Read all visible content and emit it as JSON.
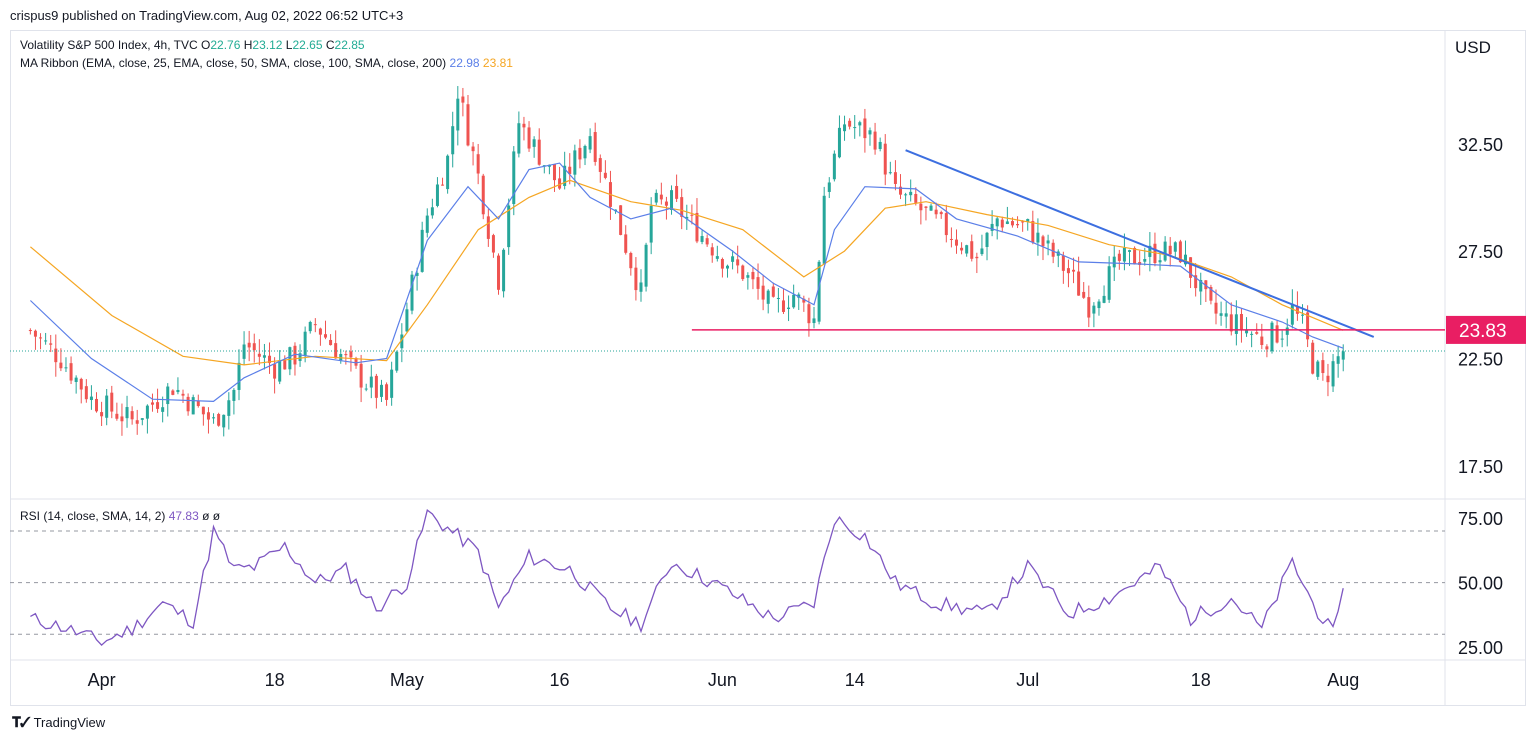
{
  "header": {
    "publisher": "crispus9 published on TradingView.com, Aug 02, 2022 06:52 UTC+3"
  },
  "legend": {
    "symbol": "Volatility S&P 500 Index, 4h, TVC",
    "open_label": "O",
    "open": "22.76",
    "high_label": "H",
    "high": "23.12",
    "low_label": "L",
    "low": "22.65",
    "close_label": "C",
    "close": "22.85",
    "ma_label": "MA Ribbon (EMA, close, 25, EMA, close, 50, SMA, close, 100, SMA, close, 200)",
    "ma_fast_value": "22.98",
    "ma_slow_value": "23.81",
    "rsi_label": "RSI (14, close, SMA, 14, 2)",
    "rsi_value": "47.83",
    "rsi_extra1": "ø",
    "rsi_extra2": "ø"
  },
  "price_axis": {
    "currency": "USD",
    "ticks": [
      "32.50",
      "27.50",
      "22.50",
      "17.50"
    ]
  },
  "rsi_axis": {
    "ticks": [
      "75.00",
      "50.00",
      "25.00"
    ]
  },
  "time_axis": {
    "labels": [
      "Apr",
      "18",
      "May",
      "16",
      "Jun",
      "14",
      "Jul",
      "18",
      "Aug"
    ]
  },
  "price_badge": {
    "value": "23.83"
  },
  "footer": {
    "brand": "TradingView"
  },
  "colors": {
    "up": "#26a69a",
    "down": "#ef5350",
    "ema_fast": "#5b7fe8",
    "ema_slow": "#f5a623",
    "trendline": "#3d6fe0",
    "support": "#e91e63",
    "rsi": "#7e57c2"
  },
  "chart_data": [
    {
      "type": "candlestick",
      "series_name": "Volatility S&P 500 Index, 4h, TVC",
      "y_unit": "USD",
      "ylim": [
        16.0,
        37.8
      ],
      "x_tick_labels": [
        "Apr",
        "18",
        "May",
        "16",
        "Jun",
        "14",
        "Jul",
        "18",
        "Aug"
      ],
      "close_path": [
        {
          "date": "2022-03-25",
          "value": 23.8
        },
        {
          "date": "2022-03-28",
          "value": 22.5
        },
        {
          "date": "2022-03-31",
          "value": 20.6
        },
        {
          "date": "2022-04-04",
          "value": 19.6
        },
        {
          "date": "2022-04-08",
          "value": 21.2
        },
        {
          "date": "2022-04-12",
          "value": 19.5
        },
        {
          "date": "2022-04-14",
          "value": 21.0
        },
        {
          "date": "2022-04-15",
          "value": 23.2
        },
        {
          "date": "2022-04-18",
          "value": 22.1
        },
        {
          "date": "2022-04-20",
          "value": 22.6
        },
        {
          "date": "2022-04-22",
          "value": 24.1
        },
        {
          "date": "2022-04-26",
          "value": 21.8
        },
        {
          "date": "2022-04-29",
          "value": 20.5
        },
        {
          "date": "2022-05-03",
          "value": 29.2
        },
        {
          "date": "2022-05-05",
          "value": 31.8
        },
        {
          "date": "2022-05-06",
          "value": 35.0
        },
        {
          "date": "2022-05-08",
          "value": 31.0
        },
        {
          "date": "2022-05-10",
          "value": 26.2
        },
        {
          "date": "2022-05-12",
          "value": 33.5
        },
        {
          "date": "2022-05-16",
          "value": 30.5
        },
        {
          "date": "2022-05-19",
          "value": 33.0
        },
        {
          "date": "2022-05-22",
          "value": 28.5
        },
        {
          "date": "2022-05-24",
          "value": 25.5
        },
        {
          "date": "2022-05-25",
          "value": 29.6
        },
        {
          "date": "2022-05-27",
          "value": 29.8
        },
        {
          "date": "2022-06-01",
          "value": 27.2
        },
        {
          "date": "2022-06-03",
          "value": 26.5
        },
        {
          "date": "2022-06-06",
          "value": 24.8
        },
        {
          "date": "2022-06-08",
          "value": 25.5
        },
        {
          "date": "2022-06-10",
          "value": 24.3
        },
        {
          "date": "2022-06-11",
          "value": 30.2
        },
        {
          "date": "2022-06-13",
          "value": 33.5
        },
        {
          "date": "2022-06-16",
          "value": 32.8
        },
        {
          "date": "2022-06-18",
          "value": 30.2
        },
        {
          "date": "2022-06-20",
          "value": 29.6
        },
        {
          "date": "2022-06-23",
          "value": 28.5
        },
        {
          "date": "2022-06-26",
          "value": 27.2
        },
        {
          "date": "2022-06-28",
          "value": 29.0
        },
        {
          "date": "2022-07-01",
          "value": 28.6
        },
        {
          "date": "2022-07-05",
          "value": 26.5
        },
        {
          "date": "2022-07-07",
          "value": 25.0
        },
        {
          "date": "2022-07-10",
          "value": 27.0
        },
        {
          "date": "2022-07-14",
          "value": 27.5
        },
        {
          "date": "2022-07-16",
          "value": 27.4
        },
        {
          "date": "2022-07-19",
          "value": 24.7
        },
        {
          "date": "2022-07-21",
          "value": 24.2
        },
        {
          "date": "2022-07-24",
          "value": 23.4
        },
        {
          "date": "2022-07-26",
          "value": 23.8
        },
        {
          "date": "2022-07-27",
          "value": 24.8
        },
        {
          "date": "2022-07-28",
          "value": 24.0
        },
        {
          "date": "2022-07-29",
          "value": 22.3
        },
        {
          "date": "2022-07-30",
          "value": 21.5
        },
        {
          "date": "2022-08-01",
          "value": 22.85
        }
      ],
      "ema_fast_path": [
        {
          "date": "2022-03-25",
          "value": 25.2
        },
        {
          "date": "2022-03-31",
          "value": 22.5
        },
        {
          "date": "2022-04-06",
          "value": 20.6
        },
        {
          "date": "2022-04-12",
          "value": 20.5
        },
        {
          "date": "2022-04-15",
          "value": 21.6
        },
        {
          "date": "2022-04-20",
          "value": 22.7
        },
        {
          "date": "2022-04-26",
          "value": 22.3
        },
        {
          "date": "2022-04-29",
          "value": 22.5
        },
        {
          "date": "2022-05-03",
          "value": 28.0
        },
        {
          "date": "2022-05-07",
          "value": 30.5
        },
        {
          "date": "2022-05-10",
          "value": 29.0
        },
        {
          "date": "2022-05-13",
          "value": 31.3
        },
        {
          "date": "2022-05-16",
          "value": 31.6
        },
        {
          "date": "2022-05-19",
          "value": 30.0
        },
        {
          "date": "2022-05-23",
          "value": 29.0
        },
        {
          "date": "2022-05-27",
          "value": 29.5
        },
        {
          "date": "2022-06-02",
          "value": 27.5
        },
        {
          "date": "2022-06-06",
          "value": 26.0
        },
        {
          "date": "2022-06-10",
          "value": 25.0
        },
        {
          "date": "2022-06-12",
          "value": 28.5
        },
        {
          "date": "2022-06-15",
          "value": 30.5
        },
        {
          "date": "2022-06-20",
          "value": 30.4
        },
        {
          "date": "2022-06-24",
          "value": 29.0
        },
        {
          "date": "2022-06-30",
          "value": 28.2
        },
        {
          "date": "2022-07-06",
          "value": 27.0
        },
        {
          "date": "2022-07-12",
          "value": 26.9
        },
        {
          "date": "2022-07-16",
          "value": 26.8
        },
        {
          "date": "2022-07-21",
          "value": 25.0
        },
        {
          "date": "2022-07-26",
          "value": 24.2
        },
        {
          "date": "2022-07-29",
          "value": 23.5
        },
        {
          "date": "2022-08-01",
          "value": 22.98
        }
      ],
      "ema_slow_path": [
        {
          "date": "2022-03-25",
          "value": 27.7
        },
        {
          "date": "2022-04-02",
          "value": 24.5
        },
        {
          "date": "2022-04-09",
          "value": 22.6
        },
        {
          "date": "2022-04-15",
          "value": 22.2
        },
        {
          "date": "2022-04-22",
          "value": 22.6
        },
        {
          "date": "2022-04-29",
          "value": 22.4
        },
        {
          "date": "2022-05-03",
          "value": 25.0
        },
        {
          "date": "2022-05-08",
          "value": 28.5
        },
        {
          "date": "2022-05-13",
          "value": 30.0
        },
        {
          "date": "2022-05-17",
          "value": 30.8
        },
        {
          "date": "2022-05-23",
          "value": 29.8
        },
        {
          "date": "2022-05-28",
          "value": 29.4
        },
        {
          "date": "2022-06-03",
          "value": 28.5
        },
        {
          "date": "2022-06-09",
          "value": 26.3
        },
        {
          "date": "2022-06-13",
          "value": 27.5
        },
        {
          "date": "2022-06-17",
          "value": 29.5
        },
        {
          "date": "2022-06-21",
          "value": 29.8
        },
        {
          "date": "2022-06-27",
          "value": 29.2
        },
        {
          "date": "2022-07-03",
          "value": 28.7
        },
        {
          "date": "2022-07-09",
          "value": 27.8
        },
        {
          "date": "2022-07-15",
          "value": 27.3
        },
        {
          "date": "2022-07-21",
          "value": 26.3
        },
        {
          "date": "2022-07-26",
          "value": 25.0
        },
        {
          "date": "2022-08-01",
          "value": 23.81
        }
      ],
      "annotations": {
        "descending_trendline": [
          {
            "date": "2022-06-19",
            "value": 32.2
          },
          {
            "date": "2022-08-04",
            "value": 23.5
          }
        ],
        "horizontal_support": {
          "value": 23.83,
          "from": "2022-05-29"
        }
      }
    },
    {
      "type": "line",
      "series_name": "RSI (14, close, SMA, 14, 2)",
      "ylim": [
        20.0,
        82.0
      ],
      "guide_levels": [
        70,
        50,
        30
      ],
      "points": [
        {
          "date": "2022-03-25",
          "value": 36
        },
        {
          "date": "2022-03-28",
          "value": 33
        },
        {
          "date": "2022-04-01",
          "value": 27
        },
        {
          "date": "2022-04-04",
          "value": 32
        },
        {
          "date": "2022-04-07",
          "value": 42
        },
        {
          "date": "2022-04-10",
          "value": 35
        },
        {
          "date": "2022-04-12",
          "value": 70
        },
        {
          "date": "2022-04-14",
          "value": 55
        },
        {
          "date": "2022-04-16",
          "value": 56
        },
        {
          "date": "2022-04-19",
          "value": 64
        },
        {
          "date": "2022-04-22",
          "value": 50
        },
        {
          "date": "2022-04-25",
          "value": 55
        },
        {
          "date": "2022-04-28",
          "value": 40
        },
        {
          "date": "2022-05-01",
          "value": 50
        },
        {
          "date": "2022-05-03",
          "value": 77
        },
        {
          "date": "2022-05-06",
          "value": 68
        },
        {
          "date": "2022-05-08",
          "value": 62
        },
        {
          "date": "2022-05-10",
          "value": 40
        },
        {
          "date": "2022-05-13",
          "value": 60
        },
        {
          "date": "2022-05-17",
          "value": 55
        },
        {
          "date": "2022-05-21",
          "value": 40
        },
        {
          "date": "2022-05-24",
          "value": 34
        },
        {
          "date": "2022-05-27",
          "value": 58
        },
        {
          "date": "2022-06-01",
          "value": 48
        },
        {
          "date": "2022-06-06",
          "value": 36
        },
        {
          "date": "2022-06-10",
          "value": 42
        },
        {
          "date": "2022-06-12",
          "value": 75
        },
        {
          "date": "2022-06-15",
          "value": 68
        },
        {
          "date": "2022-06-18",
          "value": 50
        },
        {
          "date": "2022-06-22",
          "value": 42
        },
        {
          "date": "2022-06-27",
          "value": 38
        },
        {
          "date": "2022-07-01",
          "value": 56
        },
        {
          "date": "2022-07-05",
          "value": 38
        },
        {
          "date": "2022-07-09",
          "value": 44
        },
        {
          "date": "2022-07-14",
          "value": 56
        },
        {
          "date": "2022-07-17",
          "value": 36
        },
        {
          "date": "2022-07-21",
          "value": 44
        },
        {
          "date": "2022-07-24",
          "value": 32
        },
        {
          "date": "2022-07-27",
          "value": 58
        },
        {
          "date": "2022-07-29",
          "value": 42
        },
        {
          "date": "2022-07-31",
          "value": 30
        },
        {
          "date": "2022-08-01",
          "value": 47.83
        }
      ]
    }
  ]
}
